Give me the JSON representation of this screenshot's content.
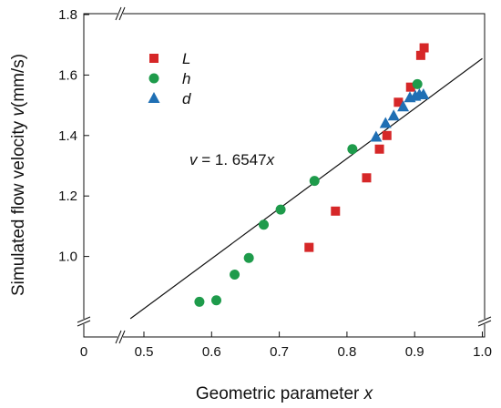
{
  "chart_data": {
    "type": "scatter",
    "title": "",
    "xlabel": "Geometric parameter ",
    "xlabel_var": "x",
    "ylabel": "Simulated flow velocity ",
    "ylabel_var": "v",
    "ylabel_unit": "(mm/s)",
    "xlim": [
      0.45,
      1.0
    ],
    "ylim": [
      0.8,
      1.8
    ],
    "x_ticks": [
      0.5,
      0.6,
      0.7,
      0.8,
      0.9,
      1.0
    ],
    "x_tick_labels": [
      "0.5",
      "0.6",
      "0.7",
      "0.8",
      "0.9",
      "1.0"
    ],
    "y_ticks": [
      1.0,
      1.2,
      1.4,
      1.6,
      1.8
    ],
    "y_tick_labels": [
      "1.0",
      "1.2",
      "1.4",
      "1.6",
      "1.8"
    ],
    "x_origin_label": "0",
    "axis_breaks": true,
    "grid": false,
    "legend_position": "top-left",
    "series": [
      {
        "name": "L",
        "marker": "square",
        "color": "#d62728",
        "points": [
          [
            0.744,
            1.03
          ],
          [
            0.783,
            1.15
          ],
          [
            0.829,
            1.26
          ],
          [
            0.848,
            1.355
          ],
          [
            0.859,
            1.4
          ],
          [
            0.876,
            1.51
          ],
          [
            0.894,
            1.56
          ],
          [
            0.909,
            1.665
          ],
          [
            0.914,
            1.69
          ]
        ]
      },
      {
        "name": "h",
        "marker": "circle",
        "color": "#1e9b4b",
        "points": [
          [
            0.582,
            0.85
          ],
          [
            0.607,
            0.855
          ],
          [
            0.634,
            0.94
          ],
          [
            0.655,
            0.995
          ],
          [
            0.677,
            1.105
          ],
          [
            0.702,
            1.155
          ],
          [
            0.752,
            1.25
          ],
          [
            0.808,
            1.355
          ],
          [
            0.904,
            1.57
          ]
        ]
      },
      {
        "name": "d",
        "marker": "triangle",
        "color": "#1f6fb4",
        "points": [
          [
            0.843,
            1.395
          ],
          [
            0.857,
            1.44
          ],
          [
            0.869,
            1.465
          ],
          [
            0.883,
            1.495
          ],
          [
            0.893,
            1.525
          ],
          [
            0.901,
            1.53
          ],
          [
            0.907,
            1.535
          ],
          [
            0.913,
            1.535
          ]
        ]
      }
    ],
    "fit_line": {
      "slope": 1.6547,
      "x_range": [
        0.48,
        1.0
      ],
      "label_prefix": "v",
      "label_equals": " = 1. 6547",
      "label_var": "x"
    }
  }
}
